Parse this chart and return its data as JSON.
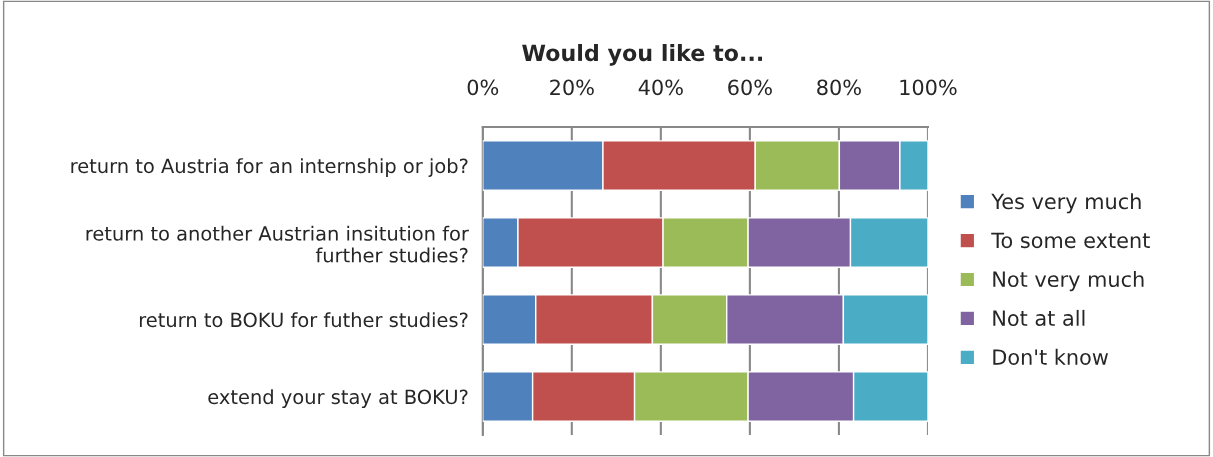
{
  "chart_data": {
    "type": "bar",
    "orientation": "horizontal",
    "stacked": true,
    "title": "Would you like to...",
    "categories": [
      "return to Austria for an internship or job?",
      "return to another Austrian insitution for further studies?",
      "return to BOKU for futher studies?",
      "extend your stay at BOKU?"
    ],
    "series": [
      {
        "name": "Yes very much",
        "color": "#4f81bd",
        "values": [
          27.0,
          7.9,
          11.9,
          11.2
        ]
      },
      {
        "name": "To some extent",
        "color": "#c0504d",
        "values": [
          34.2,
          32.6,
          26.2,
          22.9
        ]
      },
      {
        "name": "Not very much",
        "color": "#9bbb59",
        "values": [
          18.9,
          19.1,
          16.7,
          25.5
        ]
      },
      {
        "name": "Not at all",
        "color": "#8064a2",
        "values": [
          13.6,
          23.0,
          26.2,
          23.7
        ]
      },
      {
        "name": "Don't know",
        "color": "#4bacc6",
        "values": [
          6.3,
          17.4,
          19.0,
          16.7
        ]
      }
    ],
    "xlim": [
      0,
      100
    ],
    "xticks": [
      {
        "value": 0,
        "label": "0%"
      },
      {
        "value": 20,
        "label": "20%"
      },
      {
        "value": 40,
        "label": "40%"
      },
      {
        "value": 60,
        "label": "60%"
      },
      {
        "value": 80,
        "label": "80%"
      },
      {
        "value": 100,
        "label": "100%"
      }
    ],
    "grid": "x",
    "legend": "right"
  }
}
